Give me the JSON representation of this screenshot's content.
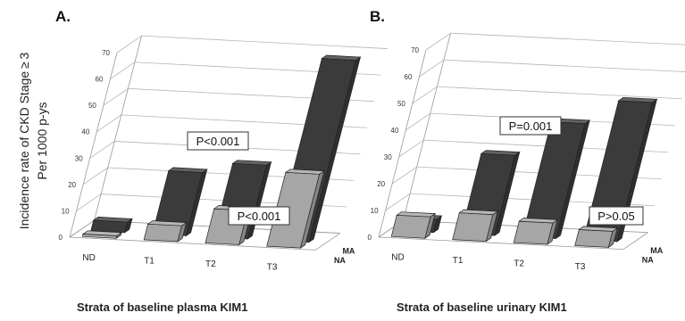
{
  "y_axis_label_line1": "Incidence rate of  CKD  Stage ≥ 3",
  "y_axis_label_line2": "Per 1000 p-ys",
  "colors": {
    "MA": "#3b3b3b",
    "NA": "#a6a6a6",
    "grid": "#b5b5b5",
    "wall": "#9a9a9a"
  },
  "chart_data": [
    {
      "type": "bar",
      "panel_label": "A.",
      "xlabel": "Strata of baseline plasma KIM1",
      "categories": [
        "ND",
        "T1",
        "T2",
        "T3"
      ],
      "series": [
        {
          "name": "NA",
          "values": [
            1,
            6,
            13,
            28
          ]
        },
        {
          "name": "MA",
          "values": [
            4,
            24,
            28,
            69
          ]
        }
      ],
      "ylim": [
        0,
        70
      ],
      "y_ticks": [
        "0",
        "10",
        "20",
        "30",
        "40",
        "50",
        "60",
        "70"
      ],
      "grid": true,
      "annotations": [
        "P<0.001",
        "P<0.001"
      ]
    },
    {
      "type": "bar",
      "panel_label": "B.",
      "xlabel": "Strata of baseline urinary KIM1",
      "categories": [
        "ND",
        "T1",
        "T2",
        "T3"
      ],
      "series": [
        {
          "name": "NA",
          "values": [
            8,
            10,
            8,
            6
          ]
        },
        {
          "name": "MA",
          "values": [
            5,
            30,
            43,
            52
          ]
        }
      ],
      "ylim": [
        0,
        70
      ],
      "y_ticks": [
        "0",
        "10",
        "20",
        "30",
        "40",
        "50",
        "60",
        "70"
      ],
      "grid": true,
      "annotations": [
        "P=0.001",
        "P>0.05"
      ]
    }
  ]
}
